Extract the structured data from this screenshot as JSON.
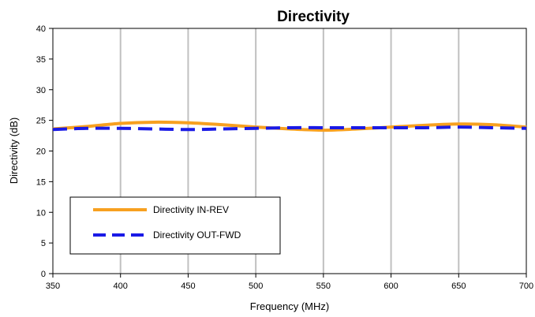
{
  "chart_data": {
    "type": "line",
    "title": "Directivity",
    "xlabel": "Frequency (MHz)",
    "ylabel": "Directivity (dB)",
    "xlim": [
      350,
      700
    ],
    "ylim": [
      0,
      40
    ],
    "xticks": [
      350,
      400,
      450,
      500,
      550,
      600,
      650,
      700
    ],
    "yticks": [
      0,
      5,
      10,
      15,
      20,
      25,
      30,
      35,
      40
    ],
    "xtick_labels": [
      "350",
      "400",
      "450",
      "500",
      "550",
      "600",
      "650",
      "700"
    ],
    "ytick_labels": [
      "0",
      "5",
      "10",
      "15",
      "20",
      "25",
      "30",
      "35",
      "40"
    ],
    "grid": "vertical",
    "legend_position": "bottom-left",
    "series": [
      {
        "name": "Directivity IN-REV",
        "color": "#F7A020",
        "style": "solid",
        "x": [
          350,
          375,
          400,
          425,
          450,
          475,
          500,
          525,
          550,
          575,
          600,
          625,
          650,
          675,
          700
        ],
        "y": [
          23.6,
          24.0,
          24.5,
          24.7,
          24.6,
          24.3,
          23.9,
          23.6,
          23.4,
          23.6,
          23.9,
          24.2,
          24.4,
          24.3,
          23.9
        ]
      },
      {
        "name": "Directivity OUT-FWD",
        "color": "#1A1AE6",
        "style": "dashed",
        "x": [
          350,
          375,
          400,
          425,
          450,
          475,
          500,
          525,
          550,
          575,
          600,
          625,
          650,
          675,
          700
        ],
        "y": [
          23.5,
          23.7,
          23.7,
          23.6,
          23.5,
          23.6,
          23.7,
          23.8,
          23.8,
          23.8,
          23.8,
          23.8,
          23.9,
          23.8,
          23.7
        ]
      }
    ]
  }
}
